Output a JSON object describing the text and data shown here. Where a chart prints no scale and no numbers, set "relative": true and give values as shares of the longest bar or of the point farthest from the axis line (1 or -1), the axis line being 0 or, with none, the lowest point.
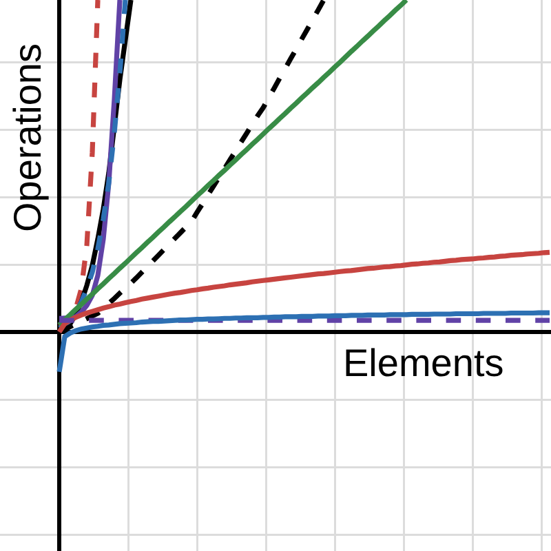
{
  "chart_data": {
    "type": "line",
    "relative": true,
    "xlabel": "Elements",
    "ylabel": "Operations",
    "categories": [
      null,
      null,
      null,
      null,
      null,
      null,
      null,
      null,
      null,
      null,
      null,
      null,
      null,
      null,
      null,
      null,
      null,
      null,
      null,
      null,
      null,
      null,
      null,
      null,
      null,
      null,
      null,
      null,
      null,
      null,
      null,
      null,
      null,
      null,
      null,
      null,
      null,
      null,
      null,
      null,
      null,
      null,
      null,
      null,
      null,
      null,
      null,
      null,
      null,
      null,
      null,
      null,
      null,
      null,
      null,
      null,
      null,
      null,
      null,
      null,
      null,
      null,
      null,
      null,
      null,
      null,
      null,
      null,
      null,
      null,
      null,
      null,
      null,
      null,
      null,
      null,
      null,
      null,
      null,
      null,
      null,
      null,
      null,
      null,
      null,
      null,
      null,
      null,
      null,
      null
    ],
    "grid": true,
    "marker": "none",
    "series": [
      {
        "color": "#c74440",
        "line_style": "dashed",
        "values": [
          0.017,
          0.025,
          0.035,
          0.07,
          0.13,
          0.26,
          0.54,
          1,
          null,
          null,
          null,
          null,
          null,
          null,
          null,
          null,
          null,
          null,
          null,
          null,
          null,
          null,
          null,
          null,
          null,
          null,
          null,
          null,
          null,
          null,
          null,
          null,
          null,
          null,
          null,
          null,
          null,
          null,
          null,
          null,
          null,
          null,
          null,
          null,
          null,
          null,
          null,
          null,
          null,
          null,
          null,
          null,
          null,
          null,
          null,
          null,
          null,
          null,
          null,
          null,
          null,
          null,
          null,
          null,
          null,
          null,
          null,
          null,
          null,
          null,
          null,
          null,
          null,
          null,
          null,
          null,
          null,
          null,
          null,
          null,
          null,
          null,
          null,
          null,
          null,
          null,
          null,
          null,
          null,
          null
        ]
      },
      {
        "color": "#000000",
        "line_style": "solid",
        "values": [
          0,
          0.01,
          0.025,
          0.054,
          0.09,
          0.14,
          0.2,
          0.28,
          0.37,
          0.48,
          0.62,
          0.76,
          0.88,
          1,
          null,
          null,
          null,
          null,
          null,
          null,
          null,
          null,
          null,
          null,
          null,
          null,
          null,
          null,
          null,
          null,
          null,
          null,
          null,
          null,
          null,
          null,
          null,
          null,
          null,
          null,
          null,
          null,
          null,
          null,
          null,
          null,
          null,
          null,
          null,
          null,
          null,
          null,
          null,
          null,
          null,
          null,
          null,
          null,
          null,
          null,
          null,
          null,
          null,
          null,
          null,
          null,
          null,
          null,
          null,
          null,
          null,
          null,
          null,
          null,
          null,
          null,
          null,
          null,
          null,
          null,
          null,
          null,
          null,
          null,
          null,
          null,
          null,
          null,
          null,
          null
        ]
      },
      {
        "color": "#6042a6",
        "line_style": "solid",
        "values": [
          0.041,
          0.042,
          0.043,
          0.046,
          0.06,
          0.08,
          0.11,
          0.17,
          0.28,
          0.45,
          0.7,
          1,
          null,
          null,
          null,
          null,
          null,
          null,
          null,
          null,
          null,
          null,
          null,
          null,
          null,
          null,
          null,
          null,
          null,
          null,
          null,
          null,
          null,
          null,
          null,
          null,
          null,
          null,
          null,
          null,
          null,
          null,
          null,
          null,
          null,
          null,
          null,
          null,
          null,
          null,
          null,
          null,
          null,
          null,
          null,
          null,
          null,
          null,
          null,
          null,
          null,
          null,
          null,
          null,
          null,
          null,
          null,
          null,
          null,
          null,
          null,
          null,
          null,
          null,
          null,
          null,
          null,
          null,
          null,
          null,
          null,
          null,
          null,
          null,
          null,
          null,
          null,
          null,
          null,
          null
        ]
      },
      {
        "color": "#2d70b3",
        "line_style": "dashed",
        "values": [
          0.012,
          0.02,
          0.035,
          0.06,
          0.09,
          0.13,
          0.18,
          0.25,
          0.34,
          0.45,
          0.6,
          0.78,
          1,
          null,
          null,
          null,
          null,
          null,
          null,
          null,
          null,
          null,
          null,
          null,
          null,
          null,
          null,
          null,
          null,
          null,
          null,
          null,
          null,
          null,
          null,
          null,
          null,
          null,
          null,
          null,
          null,
          null,
          null,
          null,
          null,
          null,
          null,
          null,
          null,
          null,
          null,
          null,
          null,
          null,
          null,
          null,
          null,
          null,
          null,
          null,
          null,
          null,
          null,
          null,
          null,
          null,
          null,
          null,
          null,
          null,
          null,
          null,
          null,
          null,
          null,
          null,
          null,
          null,
          null,
          null,
          null,
          null,
          null,
          null,
          null,
          null,
          null,
          null,
          null,
          null
        ]
      },
      {
        "color": "#000000",
        "line_style": "dashed",
        "values": [
          0,
          0.008,
          0.016,
          0.024,
          0.032,
          0.04,
          0.048,
          0.056,
          0.071,
          0.086,
          0.101,
          0.117,
          0.132,
          0.147,
          0.163,
          0.18,
          0.197,
          0.214,
          0.231,
          0.248,
          0.265,
          0.282,
          0.299,
          0.316,
          0.333,
          0.36,
          0.386,
          0.413,
          0.439,
          0.466,
          0.492,
          0.519,
          0.545,
          0.572,
          0.598,
          0.625,
          0.651,
          0.675,
          0.705,
          0.734,
          0.764,
          0.793,
          0.823,
          0.852,
          0.882,
          0.911,
          0.941,
          0.97,
          1,
          null,
          null,
          null,
          null,
          null,
          null,
          null,
          null,
          null,
          null,
          null,
          null,
          null,
          null,
          null,
          null,
          null,
          null,
          null,
          null,
          null,
          null,
          null,
          null,
          null,
          null,
          null,
          null,
          null,
          null,
          null,
          null,
          null,
          null,
          null,
          null,
          null,
          null,
          null,
          null,
          null
        ]
      },
      {
        "color": "#388c46",
        "line_style": "solid",
        "values": [
          0.021,
          0.037,
          0.052,
          0.068,
          0.083,
          0.099,
          0.114,
          0.13,
          0.145,
          0.161,
          0.176,
          0.192,
          0.207,
          0.223,
          0.239,
          0.254,
          0.27,
          0.285,
          0.301,
          0.316,
          0.332,
          0.347,
          0.363,
          0.378,
          0.394,
          0.41,
          0.425,
          0.441,
          0.456,
          0.472,
          0.487,
          0.503,
          0.518,
          0.534,
          0.549,
          0.565,
          0.58,
          0.596,
          0.612,
          0.627,
          0.643,
          0.658,
          0.674,
          0.689,
          0.705,
          0.72,
          0.736,
          0.751,
          0.767,
          0.782,
          0.798,
          0.813,
          0.829,
          0.845,
          0.86,
          0.876,
          0.891,
          0.907,
          0.922,
          0.938,
          0.953,
          0.969,
          0.984,
          1,
          null,
          null,
          null,
          null,
          null,
          null,
          null,
          null,
          null,
          null,
          null,
          null,
          null,
          null,
          null,
          null,
          null,
          null,
          null,
          null,
          null,
          null,
          null,
          null,
          null,
          null
        ]
      },
      {
        "color": "#c74440",
        "line_style": "solid",
        "values": [
          0,
          0.025,
          0.036,
          0.044,
          0.051,
          0.057,
          0.062,
          0.067,
          0.072,
          0.076,
          0.081,
          0.084,
          0.088,
          0.092,
          0.095,
          0.099,
          0.102,
          0.105,
          0.108,
          0.111,
          0.114,
          0.117,
          0.119,
          0.122,
          0.125,
          0.127,
          0.13,
          0.132,
          0.135,
          0.137,
          0.139,
          0.142,
          0.144,
          0.146,
          0.148,
          0.151,
          0.153,
          0.155,
          0.157,
          0.159,
          0.161,
          0.163,
          0.165,
          0.167,
          0.169,
          0.171,
          0.173,
          0.175,
          0.176,
          0.178,
          0.18,
          0.182,
          0.184,
          0.185,
          0.187,
          0.189,
          0.191,
          0.192,
          0.194,
          0.196,
          0.197,
          0.199,
          0.2,
          0.202,
          0.204,
          0.205,
          0.207,
          0.208,
          0.21,
          0.211,
          0.213,
          0.215,
          0.216,
          0.218,
          0.219,
          0.22,
          0.222,
          0.223,
          0.225,
          0.226,
          0.228,
          0.229,
          0.231,
          0.232,
          0.233,
          0.235,
          0.236,
          0.237,
          0.239,
          0.24
        ]
      },
      {
        "color": "#6042a6",
        "line_style": "dashed",
        "values": [
          0.035,
          0.035,
          0.035,
          0.035,
          0.035,
          0.035,
          0.035,
          0.035,
          0.035,
          0.035,
          0.035,
          0.035,
          0.035,
          0.035,
          0.035,
          0.035,
          0.035,
          0.035,
          0.035,
          0.035,
          0.035,
          0.035,
          0.035,
          0.035,
          0.035,
          0.035,
          0.035,
          0.035,
          0.035,
          0.035,
          0.035,
          0.035,
          0.035,
          0.035,
          0.035,
          0.035,
          0.035,
          0.035,
          0.035,
          0.035,
          0.035,
          0.035,
          0.035,
          0.035,
          0.035,
          0.035,
          0.035,
          0.035,
          0.035,
          0.035,
          0.035,
          0.035,
          0.035,
          0.035,
          0.035,
          0.035,
          0.035,
          0.035,
          0.035,
          0.035,
          0.035,
          0.035,
          0.035,
          0.035,
          0.035,
          0.035,
          0.035,
          0.035,
          0.035,
          0.035,
          0.035,
          0.035,
          0.035,
          0.035,
          0.035,
          0.035,
          0.035,
          0.035,
          0.035,
          0.035,
          0.035,
          0.035,
          0.035,
          0.035,
          0.035,
          0.035,
          0.035,
          0.035,
          0.035,
          0.035
        ]
      },
      {
        "color": "#2d70b3",
        "line_style": "solid",
        "values": [
          -0.12,
          -0.014,
          -0.003,
          0.004,
          0.009,
          0.012,
          0.015,
          0.017,
          0.02,
          0.021,
          0.023,
          0.025,
          0.026,
          0.027,
          0.028,
          0.03,
          0.031,
          0.032,
          0.032,
          0.033,
          0.034,
          0.035,
          0.036,
          0.036,
          0.037,
          0.038,
          0.038,
          0.039,
          0.039,
          0.04,
          0.041,
          0.041,
          0.042,
          0.042,
          0.043,
          0.043,
          0.043,
          0.044,
          0.044,
          0.045,
          0.045,
          0.046,
          0.046,
          0.046,
          0.047,
          0.047,
          0.047,
          0.048,
          0.048,
          0.048,
          0.049,
          0.049,
          0.049,
          0.05,
          0.05,
          0.05,
          0.051,
          0.051,
          0.051,
          0.051,
          0.052,
          0.052,
          0.052,
          0.052,
          0.053,
          0.053,
          0.053,
          0.053,
          0.054,
          0.054,
          0.054,
          0.054,
          0.055,
          0.055,
          0.055,
          0.055,
          0.055,
          0.056,
          0.056,
          0.056,
          0.056,
          0.056,
          0.057,
          0.057,
          0.057,
          0.057,
          0.057,
          0.058,
          0.058,
          0.058
        ]
      }
    ]
  }
}
